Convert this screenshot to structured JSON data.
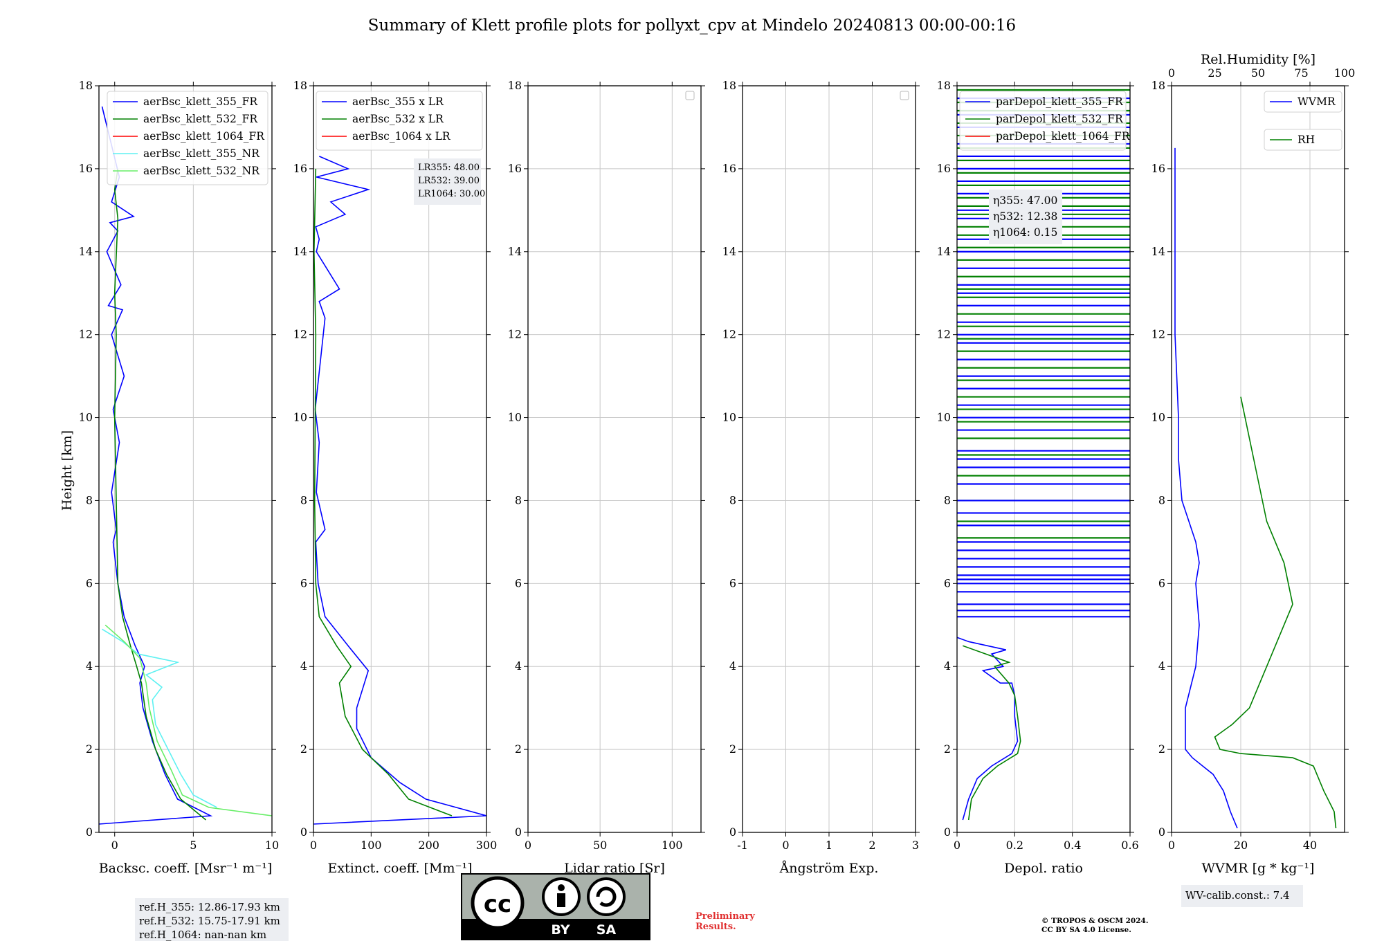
{
  "title": "Summary of Klett profile plots for pollyxt_cpv at Mindelo 20240813 00:00-00:16",
  "ylabel": "Height [km]",
  "colors": {
    "blue": "#0000ff",
    "green": "#008000",
    "red": "#ff0000",
    "cyan": "#5ef1f2",
    "lightgreen": "#66ee66"
  },
  "chart_data": [
    {
      "type": "line",
      "xlabel": "Backsc. coeff. [Msr⁻¹ m⁻¹]",
      "ylabel": "Height [km]",
      "xlim": [
        -1,
        10
      ],
      "ylim": [
        0,
        18
      ],
      "xticks": [
        0,
        5,
        10
      ],
      "yticks": [
        0,
        2,
        4,
        6,
        8,
        10,
        12,
        14,
        16,
        18
      ],
      "legend_position": "top-right",
      "series": [
        {
          "name": "aerBsc_klett_355_FR",
          "color": "blue",
          "x": [
            -1.0,
            6.1,
            4.0,
            3.2,
            2.4,
            1.8,
            1.6,
            1.9,
            1.3,
            0.6,
            0.2,
            -0.1,
            0.1,
            -0.2,
            0.3,
            -0.1,
            0.6,
            -0.2,
            0.5,
            -0.4,
            0.4,
            -0.5,
            0.2,
            -0.3,
            1.2,
            -0.2,
            0.3,
            -0.8
          ],
          "y": [
            0.2,
            0.4,
            0.8,
            1.4,
            2.2,
            3.0,
            3.6,
            4.0,
            4.5,
            5.2,
            6.0,
            7.0,
            7.3,
            8.2,
            9.4,
            10.2,
            11.0,
            12.0,
            12.6,
            12.7,
            13.2,
            14.0,
            14.5,
            14.7,
            14.85,
            15.2,
            15.8,
            17.5
          ]
        },
        {
          "name": "aerBsc_klett_532_FR",
          "color": "green",
          "x": [
            5.8,
            4.2,
            3.3,
            2.6,
            2.0,
            1.7,
            1.4,
            1.0,
            0.5,
            0.2,
            0.1,
            0.0,
            0.1,
            0.0,
            0.2,
            0.0,
            0.2
          ],
          "y": [
            0.3,
            0.8,
            1.4,
            2.0,
            2.8,
            3.6,
            4.0,
            4.5,
            5.2,
            6.0,
            8.0,
            10.0,
            12.0,
            13.0,
            14.8,
            15.5,
            16.0
          ]
        },
        {
          "name": "aerBsc_klett_1064_FR",
          "color": "red",
          "x": [],
          "y": []
        },
        {
          "name": "aerBsc_klett_355_NR",
          "color": "cyan",
          "x": [
            6.5,
            5.0,
            4.2,
            3.4,
            2.6,
            2.4,
            3.0,
            2.0,
            4.0,
            1.5,
            0.5,
            -0.8
          ],
          "y": [
            0.6,
            0.9,
            1.4,
            2.0,
            2.6,
            3.2,
            3.5,
            3.8,
            4.1,
            4.3,
            4.6,
            4.9
          ]
        },
        {
          "name": "aerBsc_klett_532_NR",
          "color": "lightgreen",
          "x": [
            10.0,
            6.0,
            4.3,
            3.6,
            2.7,
            2.2,
            2.0,
            1.6,
            0.6,
            -0.6
          ],
          "y": [
            0.4,
            0.6,
            0.9,
            1.5,
            2.2,
            3.0,
            3.6,
            4.2,
            4.6,
            5.0
          ]
        }
      ],
      "textbox": [
        "ref.H_355: 12.86-17.93 km",
        "ref.H_532: 15.75-17.91 km",
        "ref.H_1064: nan-nan km"
      ]
    },
    {
      "type": "line",
      "xlabel": "Extinct. coeff. [Mm⁻¹]",
      "xlim": [
        0,
        300
      ],
      "ylim": [
        0,
        18
      ],
      "xticks": [
        0,
        100,
        200,
        300
      ],
      "yticks": [
        0,
        2,
        4,
        6,
        8,
        10,
        12,
        14,
        16,
        18
      ],
      "legend_position": "top-right",
      "series": [
        {
          "name": "aerBsc_355 x LR",
          "color": "blue",
          "x": [
            0,
            300,
            195,
            150,
            100,
            75,
            75,
            95,
            60,
            20,
            8,
            4,
            20,
            5,
            10,
            3,
            20,
            10,
            45,
            5,
            10,
            4,
            55,
            30,
            95,
            5,
            60,
            10
          ],
          "y": [
            0.2,
            0.4,
            0.8,
            1.2,
            1.8,
            2.5,
            3.0,
            3.9,
            4.5,
            5.2,
            6.0,
            7.0,
            7.3,
            8.2,
            9.4,
            10.2,
            12.4,
            12.8,
            13.1,
            14.0,
            14.3,
            14.6,
            14.9,
            15.2,
            15.5,
            15.8,
            16.0,
            16.3
          ]
        },
        {
          "name": "aerBsc_532 x LR",
          "color": "green",
          "x": [
            240,
            165,
            130,
            85,
            55,
            45,
            65,
            40,
            10,
            4,
            2,
            4,
            1,
            4
          ],
          "y": [
            0.4,
            0.8,
            1.4,
            2.0,
            2.8,
            3.6,
            4.0,
            4.5,
            5.2,
            6.0,
            8.0,
            12.0,
            14.0,
            16.0
          ]
        },
        {
          "name": "aerBsc_1064 x LR",
          "color": "red",
          "x": [],
          "y": []
        }
      ],
      "textbox": [
        "LR355: 48.00",
        "LR532: 39.00",
        "LR1064: 30.00"
      ]
    },
    {
      "type": "line",
      "xlabel": "Lidar ratio [Sr]",
      "xlim": [
        0,
        120
      ],
      "ylim": [
        0,
        18
      ],
      "xticks": [
        0,
        50,
        100
      ],
      "yticks": [
        0,
        2,
        4,
        6,
        8,
        10,
        12,
        14,
        16,
        18
      ],
      "legend_position": "top-right",
      "series": []
    },
    {
      "type": "line",
      "xlabel": "Ångström Exp.",
      "xlim": [
        -1,
        3
      ],
      "ylim": [
        0,
        18
      ],
      "xticks": [
        -1,
        0,
        1,
        2,
        3
      ],
      "yticks": [
        0,
        2,
        4,
        6,
        8,
        10,
        12,
        14,
        16,
        18
      ],
      "legend_position": "top-right",
      "series": []
    },
    {
      "type": "line",
      "xlabel": "Depol. ratio",
      "xlim": [
        0.0,
        0.6
      ],
      "ylim": [
        0,
        18
      ],
      "xticks": [
        0.0,
        0.2,
        0.4,
        0.6
      ],
      "yticks": [
        0,
        2,
        4,
        6,
        8,
        10,
        12,
        14,
        16,
        18
      ],
      "legend_position": "top-right",
      "series": [
        {
          "name": "parDepol_klett_355_FR",
          "color": "blue",
          "x": [
            0.02,
            0.04,
            0.07,
            0.12,
            0.19,
            0.21,
            0.2,
            0.2,
            0.19,
            0.15,
            0.09,
            0.16,
            0.12,
            0.17,
            0.04,
            0.0
          ],
          "y": [
            0.3,
            0.8,
            1.3,
            1.6,
            1.9,
            2.2,
            2.8,
            3.3,
            3.6,
            3.6,
            3.9,
            4.0,
            4.3,
            4.4,
            4.6,
            4.7
          ]
        },
        {
          "name": "parDepol_klett_532_FR",
          "color": "green",
          "x": [
            0.04,
            0.05,
            0.09,
            0.14,
            0.21,
            0.22,
            0.21,
            0.2,
            0.18,
            0.13,
            0.18,
            0.1,
            0.02
          ],
          "y": [
            0.3,
            0.8,
            1.3,
            1.6,
            1.9,
            2.2,
            2.8,
            3.3,
            3.6,
            4.0,
            4.1,
            4.3,
            4.5
          ]
        },
        {
          "name": "parDepol_klett_1064_FR",
          "color": "red",
          "x": [],
          "y": []
        }
      ],
      "noise_rows": {
        "blue": [
          5.2,
          5.35,
          5.5,
          5.8,
          6.0,
          6.1,
          6.2,
          6.4,
          6.6,
          6.8,
          7.0,
          7.4,
          7.7,
          8.0,
          8.4,
          8.8,
          9.0,
          9.2,
          9.7,
          10.0,
          10.3,
          10.7,
          11.0,
          11.4,
          11.8,
          12.0,
          12.3,
          12.7,
          13.0,
          13.2,
          13.6,
          14.0,
          14.3,
          14.8,
          15.0,
          15.4,
          15.7,
          16.0,
          16.3,
          16.6,
          17.0,
          17.3,
          17.7
        ],
        "green": [
          7.1,
          7.5,
          8.0,
          8.6,
          9.1,
          9.5,
          9.9,
          10.2,
          10.5,
          10.9,
          11.2,
          11.6,
          11.9,
          12.2,
          12.5,
          12.9,
          13.1,
          13.4,
          13.8,
          14.1,
          14.4,
          14.6,
          14.9,
          15.1,
          15.3,
          15.6,
          15.9,
          16.2,
          16.5,
          16.8,
          17.1,
          17.4,
          17.6,
          17.9
        ]
      },
      "textbox": [
        "η355: 47.00",
        "η532: 12.38",
        "η1064: 0.15"
      ]
    },
    {
      "type": "line",
      "xlabel": "WVMR [g * kg⁻¹]",
      "x2label": "Rel.Humidity [%]",
      "xlim": [
        0,
        50
      ],
      "x2lim": [
        0,
        100
      ],
      "ylim": [
        0,
        18
      ],
      "xticks": [
        0,
        20,
        40
      ],
      "x2ticks": [
        0,
        25,
        50,
        75,
        100
      ],
      "yticks": [
        0,
        2,
        4,
        6,
        8,
        10,
        12,
        14,
        16,
        18
      ],
      "series": [
        {
          "name": "WVMR",
          "color": "blue",
          "x": [
            19,
            17,
            15,
            12,
            9,
            6,
            4,
            4,
            7,
            8,
            7,
            8,
            7,
            5,
            3,
            2,
            2,
            1,
            1
          ],
          "y": [
            0.1,
            0.5,
            1.0,
            1.4,
            1.6,
            1.8,
            2.0,
            3.0,
            4.0,
            5.0,
            6.0,
            6.5,
            7.0,
            7.5,
            8.0,
            9.0,
            10.0,
            12.0,
            16.5
          ]
        },
        {
          "name": "RH",
          "color": "green",
          "x": [
            95,
            94,
            88,
            82,
            70,
            40,
            28,
            25,
            35,
            45,
            50,
            60,
            70,
            65,
            55,
            50,
            40
          ],
          "y": [
            0.1,
            0.5,
            1.0,
            1.6,
            1.8,
            1.9,
            2.0,
            2.3,
            2.6,
            3.0,
            3.5,
            4.5,
            5.5,
            6.5,
            7.5,
            8.5,
            10.5
          ]
        }
      ],
      "textbox": [
        "WV-calib.const.: 7.4"
      ]
    }
  ],
  "footer": {
    "license_by": "BY",
    "license_sa": "SA",
    "preliminary_1": "Preliminary",
    "preliminary_2": "Results.",
    "copyright_1": "© TROPOS & OSCM 2024.",
    "copyright_2": "CC BY SA 4.0 License."
  }
}
